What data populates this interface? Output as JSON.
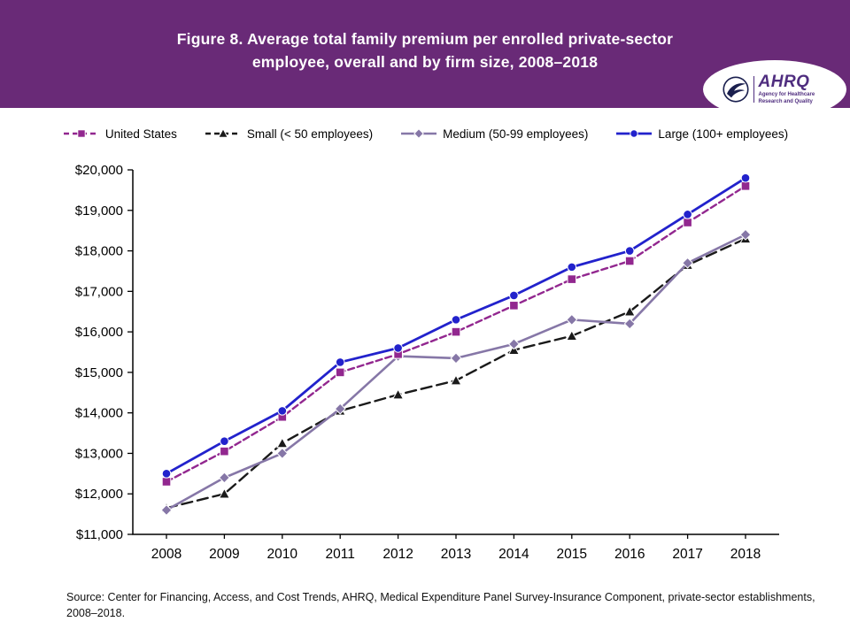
{
  "header": {
    "title_line1": "Figure 8. Average total family premium per enrolled private-sector",
    "title_line2": "employee, overall and by firm size, 2008–2018",
    "logo_name": "AHRQ",
    "logo_tagline": "Agency for Healthcare Research and Quality"
  },
  "colors": {
    "header_bg": "#692a77",
    "axis": "#000000",
    "tick_text": "#000000"
  },
  "chart_data": {
    "type": "line",
    "title": "Figure 8. Average total family premium per enrolled private-sector employee, overall and by firm size, 2008–2018",
    "xlabel": "",
    "ylabel": "",
    "grid": false,
    "legend_position": "top",
    "x": [
      "2008",
      "2009",
      "2010",
      "2011",
      "2012",
      "2013",
      "2014",
      "2015",
      "2016",
      "2017",
      "2018"
    ],
    "ylim": [
      11000,
      20000
    ],
    "yticks": [
      11000,
      12000,
      13000,
      14000,
      15000,
      16000,
      17000,
      18000,
      19000,
      20000
    ],
    "ytick_labels": [
      "$11,000",
      "$12,000",
      "$13,000",
      "$14,000",
      "$15,000",
      "$16,000",
      "$17,000",
      "$18,000",
      "$19,000",
      "$20,000"
    ],
    "series": [
      {
        "name": "United States",
        "color": "#92278f",
        "marker": "square",
        "dash": "7,4",
        "width": 2.4,
        "values": [
          12300,
          13050,
          13900,
          15000,
          15450,
          16000,
          16650,
          17300,
          17750,
          18700,
          19600
        ]
      },
      {
        "name": "Small (< 50 employees)",
        "color": "#1a1a1a",
        "marker": "triangle",
        "dash": "12,6",
        "width": 2.4,
        "values": [
          11650,
          12000,
          13250,
          14050,
          14450,
          14800,
          15550,
          15900,
          16500,
          17650,
          18300
        ]
      },
      {
        "name": "Medium (50-99 employees)",
        "color": "#8677a7",
        "marker": "diamond",
        "dash": "",
        "width": 2.6,
        "values": [
          11600,
          12400,
          13000,
          14100,
          15400,
          15350,
          15700,
          16300,
          16200,
          17700,
          18400
        ]
      },
      {
        "name": "Large (100+ employees)",
        "color": "#2222cc",
        "marker": "circle",
        "dash": "",
        "width": 2.8,
        "values": [
          12500,
          13300,
          14050,
          15250,
          15600,
          16300,
          16900,
          17600,
          18000,
          18900,
          19800
        ]
      }
    ]
  },
  "source": {
    "text": "Source: Center for Financing, Access, and Cost Trends, AHRQ, Medical Expenditure Panel Survey-Insurance Component, private-sector establishments, 2008–2018."
  }
}
